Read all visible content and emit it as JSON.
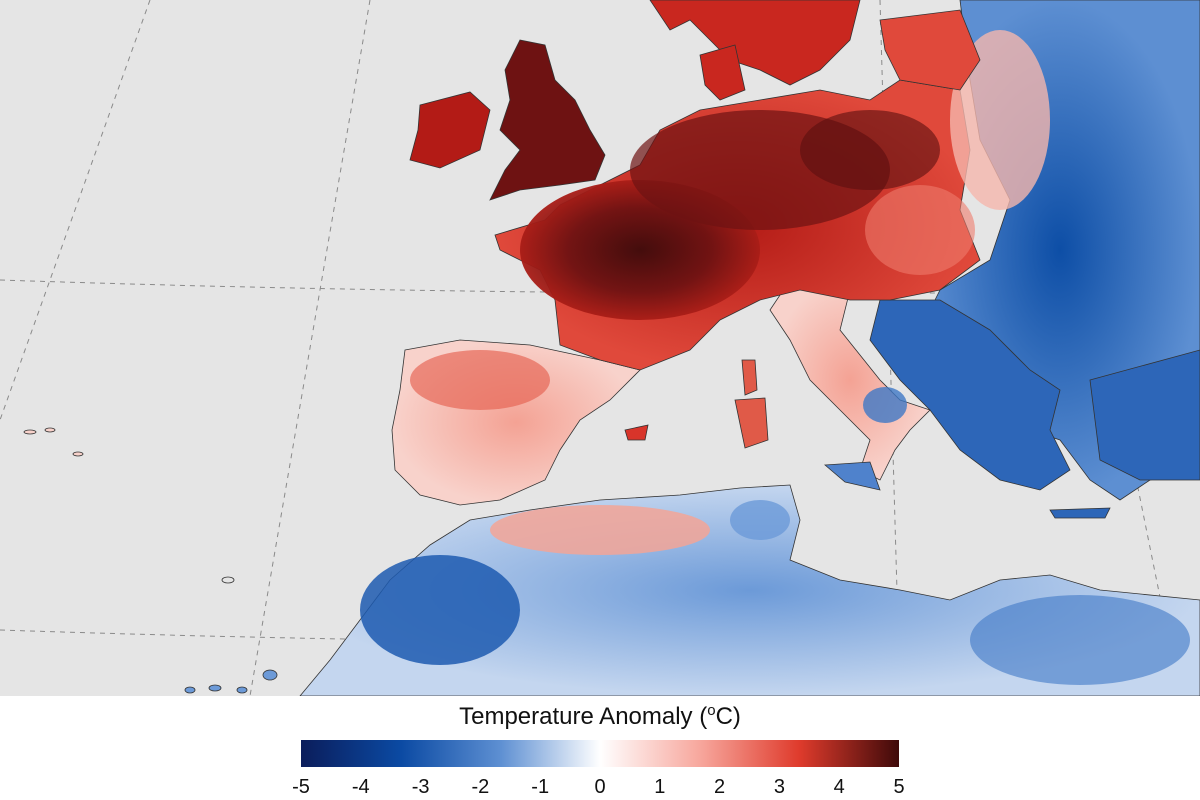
{
  "legend": {
    "title_text": "Temperature Anomaly (",
    "title_sup": "o",
    "title_tail": "C)",
    "min": -5,
    "max": 5,
    "ticks": [
      "-5",
      "-4",
      "-3",
      "-2",
      "-1",
      "0",
      "1",
      "2",
      "3",
      "4",
      "5"
    ],
    "colors": [
      "#0b1d5b",
      "#0b4aa3",
      "#5d8fd2",
      "#ffffff",
      "#f7a79d",
      "#df3b2c",
      "#3f0a0a"
    ]
  },
  "map": {
    "land_no_data": "#e5e5e5",
    "ocean": "#e5e5e5"
  }
}
